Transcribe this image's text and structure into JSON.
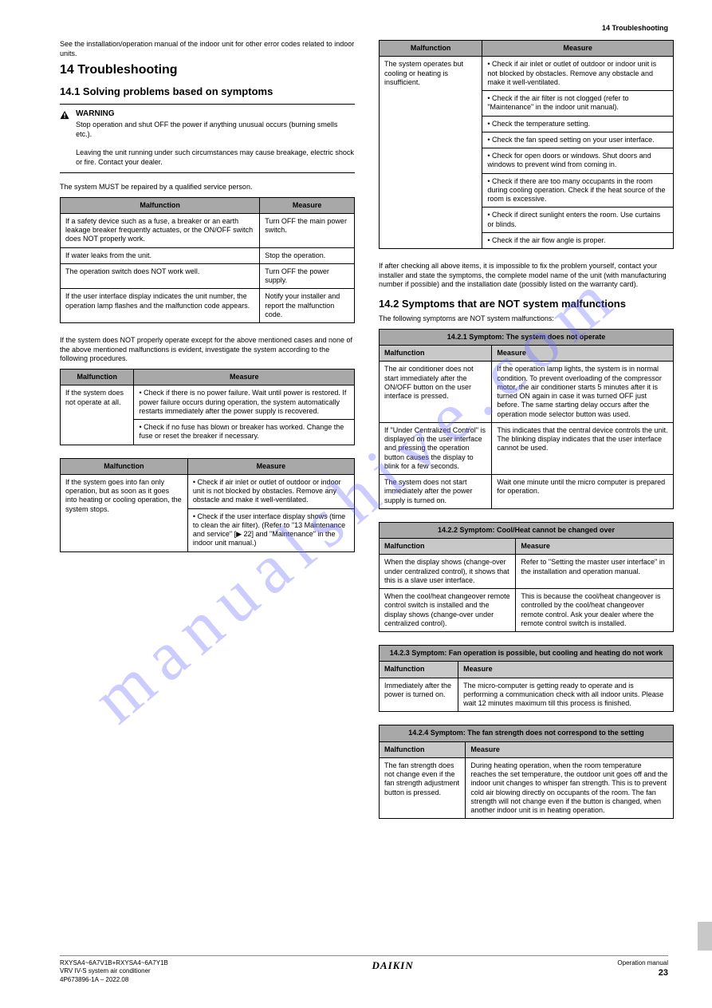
{
  "header_right": "14 Troubleshooting",
  "watermark": "manualshive.com",
  "left": {
    "intro": "See the installation/operation manual of the indoor unit for other error codes related to indoor units.",
    "h1": "14 Troubleshooting",
    "h2a": "14.1 Solving problems based on symptoms",
    "warn_title": "WARNING",
    "warn_body": "Stop operation and shut OFF the power if anything unusual occurs (burning smells etc.).\n\nLeaving the unit running under such circumstances may cause breakage, electric shock or fire. Contact your dealer.",
    "p1": "The system MUST be repaired by a qualified service person.",
    "t1": {
      "title": "Malfunction",
      "col2": "Measure",
      "rows": [
        [
          "If a safety device such as a fuse, a breaker or an earth leakage breaker frequently actuates, or the ON/OFF switch does NOT properly work.",
          "Turn OFF the main power switch."
        ],
        [
          "If water leaks from the unit.",
          "Stop the operation."
        ],
        [
          "The operation switch does NOT work well.",
          "Turn OFF the power supply."
        ],
        [
          "If the user interface display indicates the unit number, the operation lamp flashes and the malfunction code appears.",
          "Notify your installer and report the malfunction code."
        ]
      ]
    },
    "p2": "If the system does NOT properly operate except for the above mentioned cases and none of the above mentioned malfunctions is evident, investigate the system according to the following procedures.",
    "t2": {
      "rows": [
        [
          "If the system does not operate at all.",
          [
            "Check if there is no power failure. Wait until power is restored. If power failure occurs during operation, the system automatically restarts immediately after the power supply is recovered.",
            "Check if no fuse has blown or breaker has worked. Change the fuse or reset the breaker if necessary."
          ]
        ]
      ]
    },
    "t3": {
      "rows": [
        [
          "If the system goes into fan only operation, but as soon as it goes into heating or cooling operation, the system stops.",
          [
            "Check if air inlet or outlet of outdoor or indoor unit is not blocked by obstacles. Remove any obstacle and make it well-ventilated.",
            "Check if the user interface display shows  (time to clean the air filter). (Refer to \"13 Maintenance and service\" [▶ 22] and \"Maintenance\" in the indoor unit manual.)"
          ]
        ]
      ]
    }
  },
  "right": {
    "t4": {
      "rows": [
        [
          "The system operates but cooling or heating is insufficient.",
          [
            "Check if air inlet or outlet of outdoor or indoor unit is not blocked by obstacles. Remove any obstacle and make it well-ventilated.",
            "Check if the air filter is not clogged (refer to \"Maintenance\" in the indoor unit manual).",
            "Check the temperature setting.",
            "Check the fan speed setting on your user interface.",
            "Check for open doors or windows. Shut doors and windows to prevent wind from coming in.",
            "Check if there are too many occupants in the room during cooling operation. Check if the heat source of the room is excessive.",
            "Check if direct sunlight enters the room. Use curtains or blinds.",
            "Check if the air flow angle is proper."
          ]
        ]
      ]
    },
    "p_after": "If after checking all above items, it is impossible to fix the problem yourself, contact your installer and state the symptoms, the complete model name of the unit (with manufacturing number if possible) and the installation date (possibly listed on the warranty card).",
    "h2b": "14.2 Symptoms that are NOT system malfunctions",
    "p_intro": "The following symptoms are NOT system malfunctions:",
    "sym1": {
      "title": "14.2.1 Symptom: The system does not operate",
      "rows": [
        [
          "The air conditioner does not start immediately after the ON/OFF button on the user interface is pressed.",
          "If the operation lamp lights, the system is in normal condition. To prevent overloading of the compressor motor, the air conditioner starts 5 minutes after it is turned ON again in case it was turned OFF just before. The same starting delay occurs after the operation mode selector button was used."
        ],
        [
          "If \"Under Centralized Control\" is displayed on the user interface and pressing the operation button causes the display to blink for a few seconds.",
          "This indicates that the central device controls the unit. The blinking display indicates that the user interface cannot be used."
        ],
        [
          "The system does not start immediately after the power supply is turned on.",
          "Wait one minute until the micro computer is prepared for operation."
        ]
      ]
    },
    "sym2": {
      "title": "14.2.2 Symptom: Cool/Heat cannot be changed over",
      "rows": [
        [
          "When the display shows  (change-over under centralized control), it shows that this is a slave user interface.",
          "Refer to \"Setting the master user interface\" in the installation and operation manual."
        ],
        [
          "When the cool/heat changeover remote control switch is installed and the display shows  (change-over under centralized control).",
          "This is because the cool/heat changeover is controlled by the cool/heat changeover remote control. Ask your dealer where the remote control switch is installed."
        ]
      ]
    },
    "sym3": {
      "title": "14.2.3 Symptom: Fan operation is possible, but cooling and heating do not work",
      "rows": [
        [
          "Immediately after the power is turned on.",
          "The micro-computer is getting ready to operate and is performing a communication check with all indoor units. Please wait 12 minutes maximum till this process is finished."
        ]
      ]
    },
    "sym4": {
      "title": "14.2.4 Symptom: The fan strength does not correspond to the setting",
      "rows": [
        [
          "The fan strength does not change even if the fan strength adjustment button is pressed.",
          "During heating operation, when the room temperature reaches the set temperature, the outdoor unit goes off and the indoor unit changes to whisper fan strength. This is to prevent cold air blowing directly on occupants of the room. The fan strength will not change even if the button is changed, when another indoor unit is in heating operation."
        ]
      ]
    }
  },
  "footer": {
    "left_line1": "RXYSA4~6A7V1B+RXYSA4~6A7Y1B",
    "left_line2": "VRV IV-S system air conditioner",
    "left_line3": "4P673896-1A – 2022.08",
    "brand": "DAIKIN",
    "right_line1": "Operation manual",
    "page_num": "23"
  }
}
